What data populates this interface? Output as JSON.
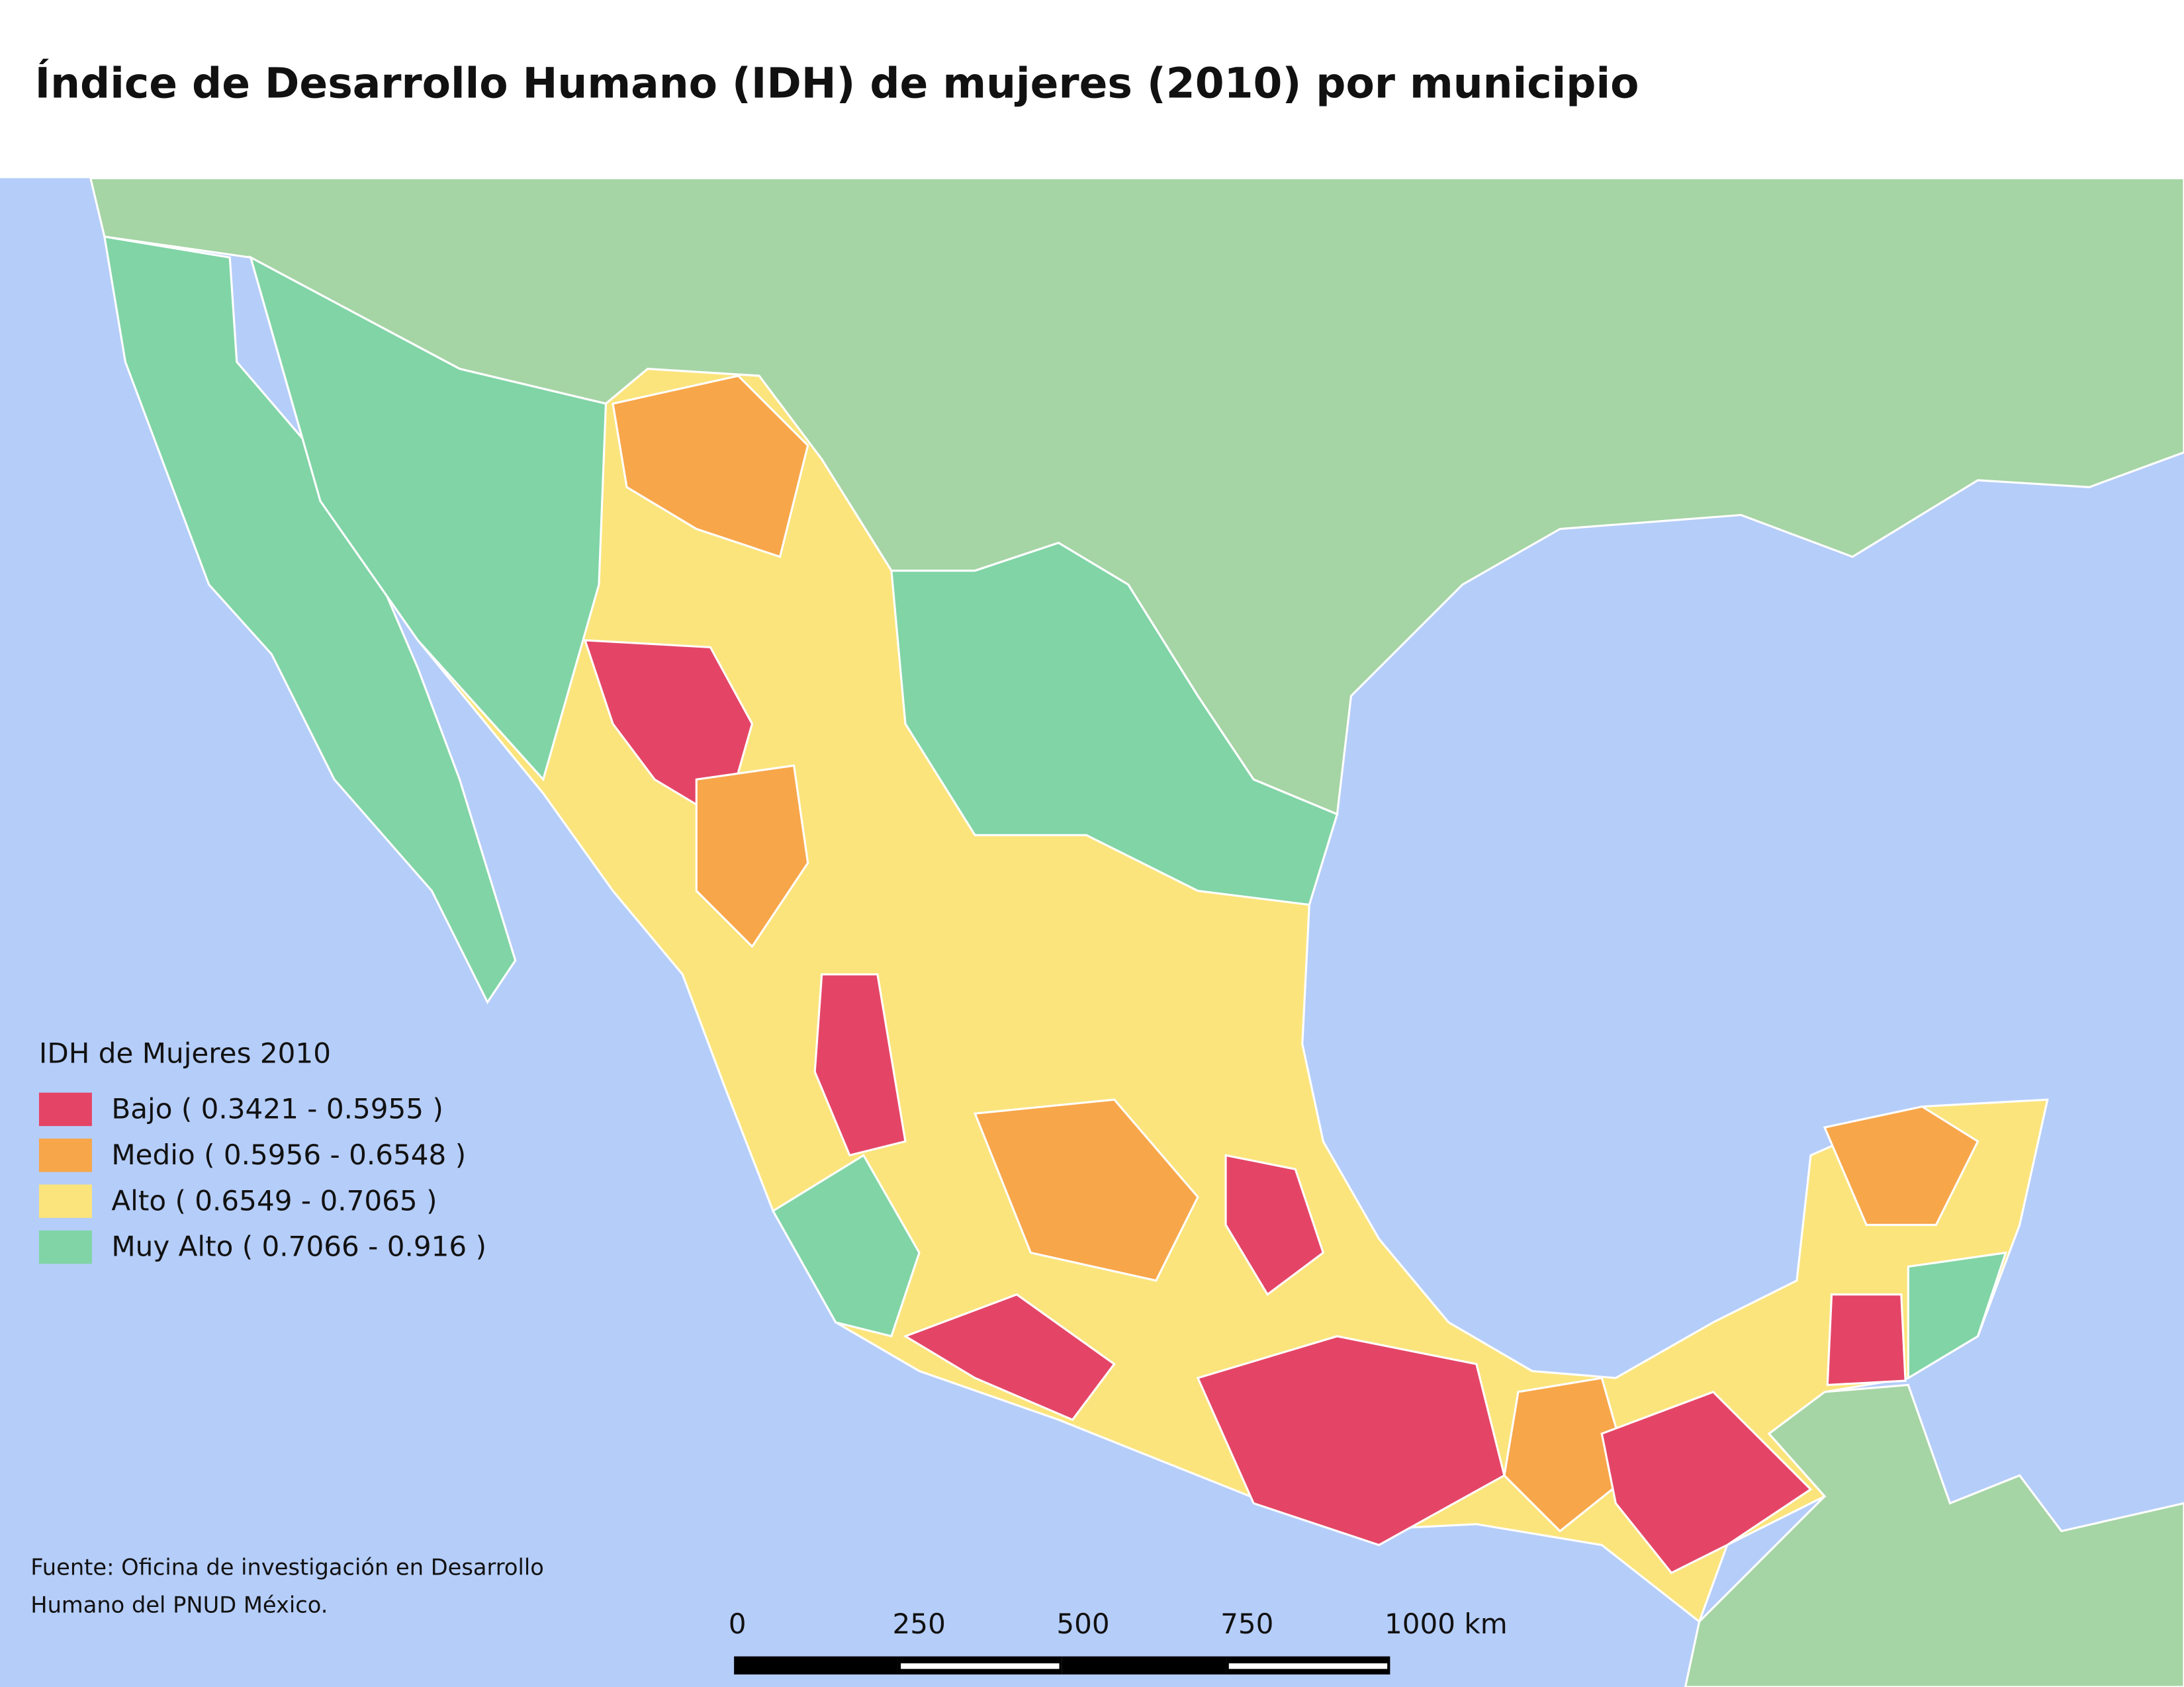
{
  "title": "Índice de Desarrollo Humano (IDH) de mujeres (2010) por municipio",
  "legend": {
    "title": "IDH de Mujeres 2010",
    "items": [
      {
        "label": "Bajo ( 0.3421 - 0.5955 )",
        "color": "#e44566"
      },
      {
        "label": "Medio ( 0.5956 - 0.6548 )",
        "color": "#f7a64a"
      },
      {
        "label": "Alto ( 0.6549 - 0.7065 )",
        "color": "#fbe47c"
      },
      {
        "label": "Muy Alto ( 0.7066 - 0.916 )",
        "color": "#80d4a6"
      }
    ]
  },
  "source": [
    "Fuente: Oficina de investigación en Desarrollo",
    "Humano del PNUD México."
  ],
  "scale_bar": {
    "ticks": [
      0,
      250,
      500,
      750,
      {
        "value": 1000,
        "label": "1000 km"
      }
    ]
  }
}
